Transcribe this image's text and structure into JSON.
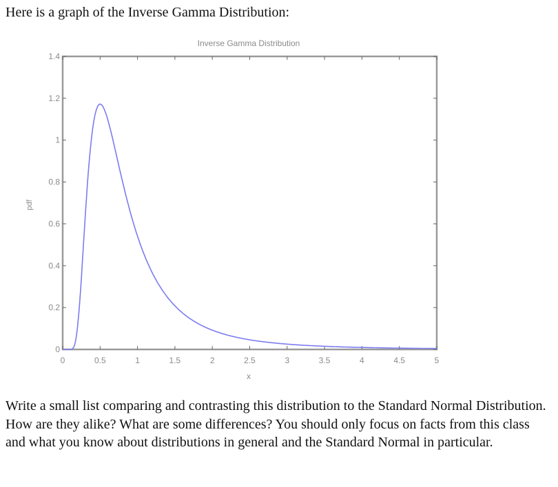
{
  "intro": {
    "text": "Here is a graph of the Inverse Gamma Distribution:"
  },
  "question": {
    "text": "Write a small list comparing and contrasting this distribution to the Standard Normal Distribution.  How are they alike?  What are some differences?  You should only focus on facts from this class and what you know about distributions in general and the Standard Normal in particular."
  },
  "colors": {
    "line": "#7b7bf0",
    "axis": "#9a9a9a",
    "tick_label": "#8a8a8a"
  },
  "chart_data": {
    "type": "line",
    "title": "Inverse Gamma Distribution",
    "xlabel": "x",
    "ylabel": "pdf",
    "xlim": [
      0,
      5
    ],
    "ylim": [
      0,
      1.4
    ],
    "xticks": [
      "0",
      "0.5",
      "1",
      "1.5",
      "2",
      "2.5",
      "3",
      "3.5",
      "4",
      "4.5",
      "5"
    ],
    "yticks": [
      "0",
      "0.2",
      "0.4",
      "0.6",
      "0.8",
      "1",
      "1.2",
      "1.4"
    ],
    "grid": false,
    "legend": null,
    "series": [
      {
        "name": "pdf",
        "x": [
          0,
          0.05,
          0.1,
          0.15,
          0.2,
          0.25,
          0.3,
          0.35,
          0.4,
          0.45,
          0.5,
          0.6,
          0.7,
          0.8,
          0.9,
          1.0,
          1.2,
          1.4,
          1.6,
          1.8,
          2.0,
          2.25,
          2.5,
          2.75,
          3.0,
          3.5,
          4.0,
          4.5,
          5.0
        ],
        "values": [
          0,
          0.0,
          0.008,
          0.126,
          0.454,
          0.768,
          0.98,
          1.094,
          1.149,
          1.159,
          1.172,
          1.11,
          0.96,
          0.8,
          0.658,
          0.541,
          0.366,
          0.25,
          0.176,
          0.126,
          0.092,
          0.064,
          0.046,
          0.034,
          0.026,
          0.016,
          0.01,
          0.007,
          0.005
        ]
      }
    ]
  }
}
